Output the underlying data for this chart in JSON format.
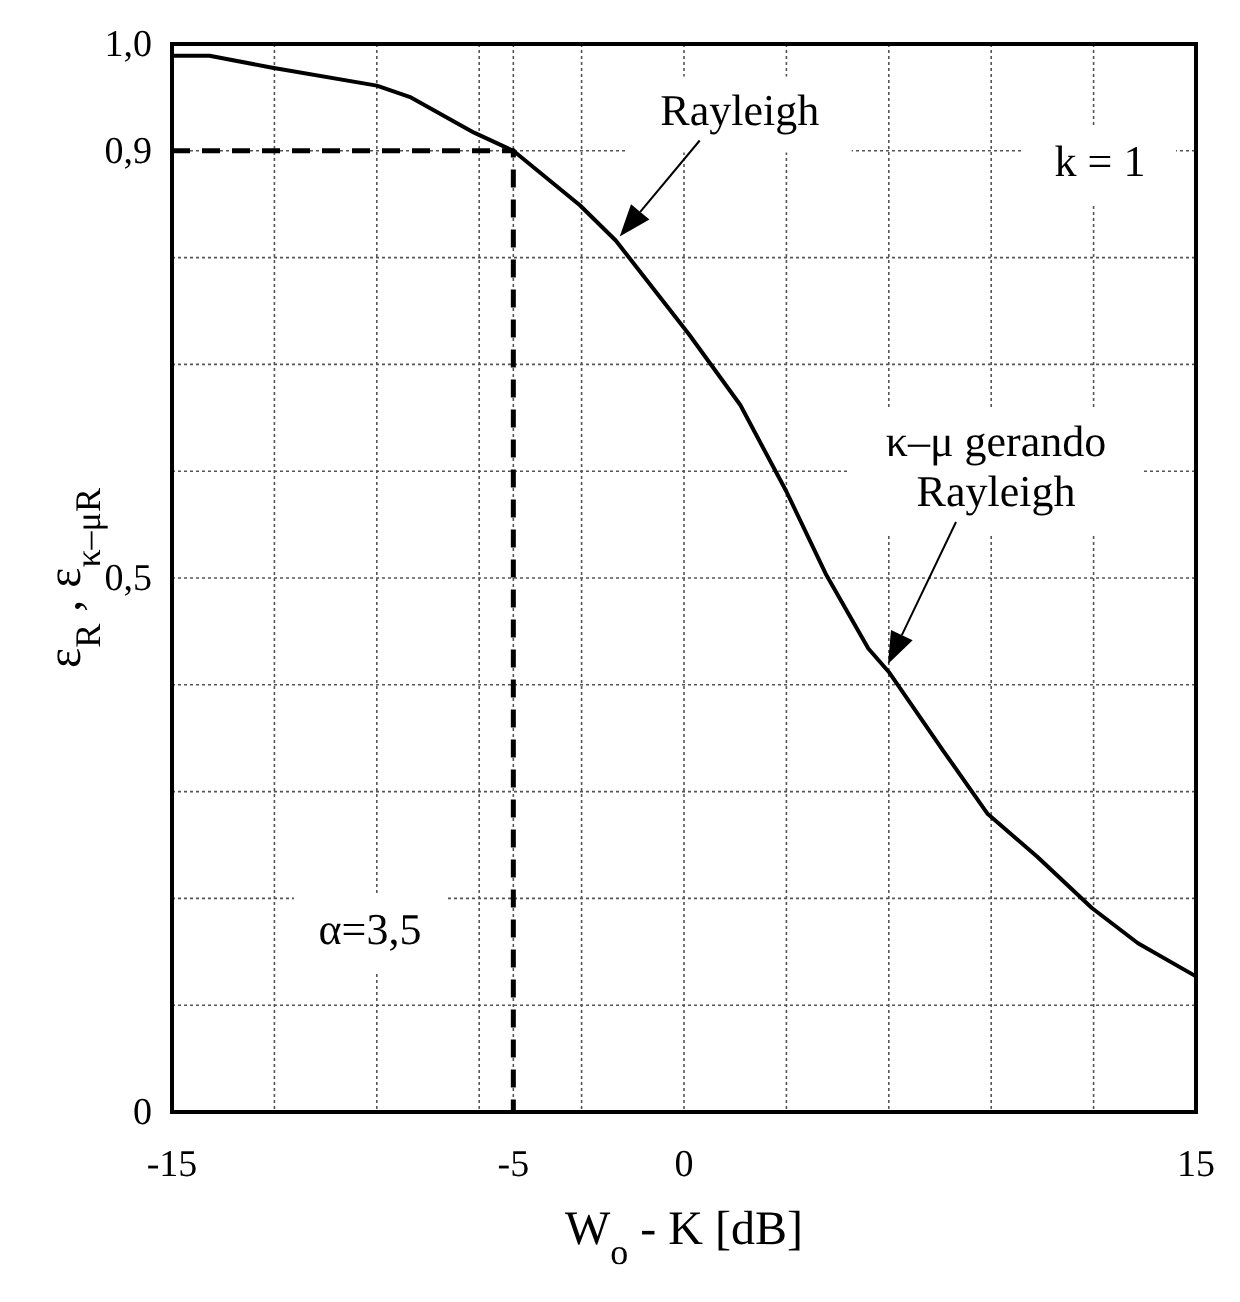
{
  "chart_data": {
    "type": "line",
    "xlabel": "W$_{o}$ - K [dB]",
    "ylabel": "ε$_{R}$  ,  ε$_{κ–μR}$",
    "xlim": [
      -15,
      15
    ],
    "ylim": [
      0,
      1
    ],
    "xticks": [
      -15,
      {
        "value": -12,
        "label": null
      },
      {
        "value": -9,
        "label": null
      },
      {
        "value": -6,
        "label": null
      },
      -5,
      {
        "value": -3,
        "label": null
      },
      0,
      {
        "value": 3,
        "label": null
      },
      {
        "value": 6,
        "label": null
      },
      {
        "value": 9,
        "label": null
      },
      {
        "value": 12,
        "label": null
      },
      15
    ],
    "yticks": [
      0,
      {
        "value": 0.1,
        "label": null
      },
      {
        "value": 0.2,
        "label": null
      },
      {
        "value": 0.3,
        "label": null
      },
      {
        "value": 0.4,
        "label": null
      },
      {
        "value": 0.5,
        "label": "0,5"
      },
      {
        "value": 0.6,
        "label": null
      },
      {
        "value": 0.7,
        "label": null
      },
      {
        "value": 0.8,
        "label": null
      },
      {
        "value": 0.9,
        "label": "0,9"
      },
      {
        "value": 1,
        "label": "1,0"
      }
    ],
    "grid": true,
    "series": [
      {
        "color": "#000000",
        "line_style": "solid",
        "x": [
          -15,
          -13.9,
          -12.1,
          -9,
          -8,
          -6.15,
          -5,
          -3.05,
          -2,
          0.15,
          1.65,
          3,
          4.15,
          5.4,
          6,
          7.6,
          8.9,
          10.35,
          11.95,
          13.3,
          15
        ],
        "values": [
          0.989,
          0.989,
          0.978,
          0.961,
          0.95,
          0.917,
          0.9,
          0.849,
          0.816,
          0.728,
          0.662,
          0.581,
          0.504,
          0.434,
          0.412,
          0.338,
          0.279,
          0.239,
          0.191,
          0.158,
          0.127
        ]
      },
      {
        "color": "#000000",
        "line_style": "dashed",
        "x": [
          -15,
          -5,
          -5
        ],
        "values": [
          0.9,
          0.9,
          0
        ]
      }
    ],
    "annotations": [
      {
        "text": "Rayleigh",
        "x": -2,
        "y": 0.816
      },
      "k = 1",
      "κ–μ gerando\nRayleigh",
      "α=3,5"
    ]
  }
}
